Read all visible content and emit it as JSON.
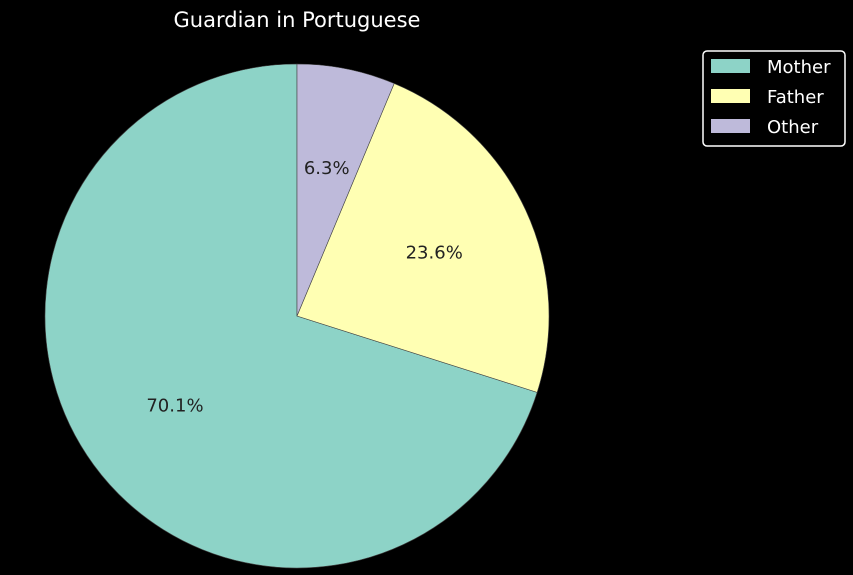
{
  "chart_data": {
    "type": "pie",
    "title": "Guardian in Portuguese",
    "categories": [
      "Mother",
      "Father",
      "Other"
    ],
    "values": [
      70.1,
      23.6,
      6.3
    ],
    "labels": [
      "70.1%",
      "23.6%",
      "6.3%"
    ],
    "colors": [
      "#8dd3c7",
      "#ffffb3",
      "#bebada"
    ],
    "start_angle_deg": 90,
    "direction": "clockwise",
    "legend_position": "top-right"
  },
  "theme": {
    "background": "#000000",
    "text": "#ffffff",
    "label_text": "#222222",
    "slice_edge": "#444444",
    "legend_border": "#ffffff"
  }
}
